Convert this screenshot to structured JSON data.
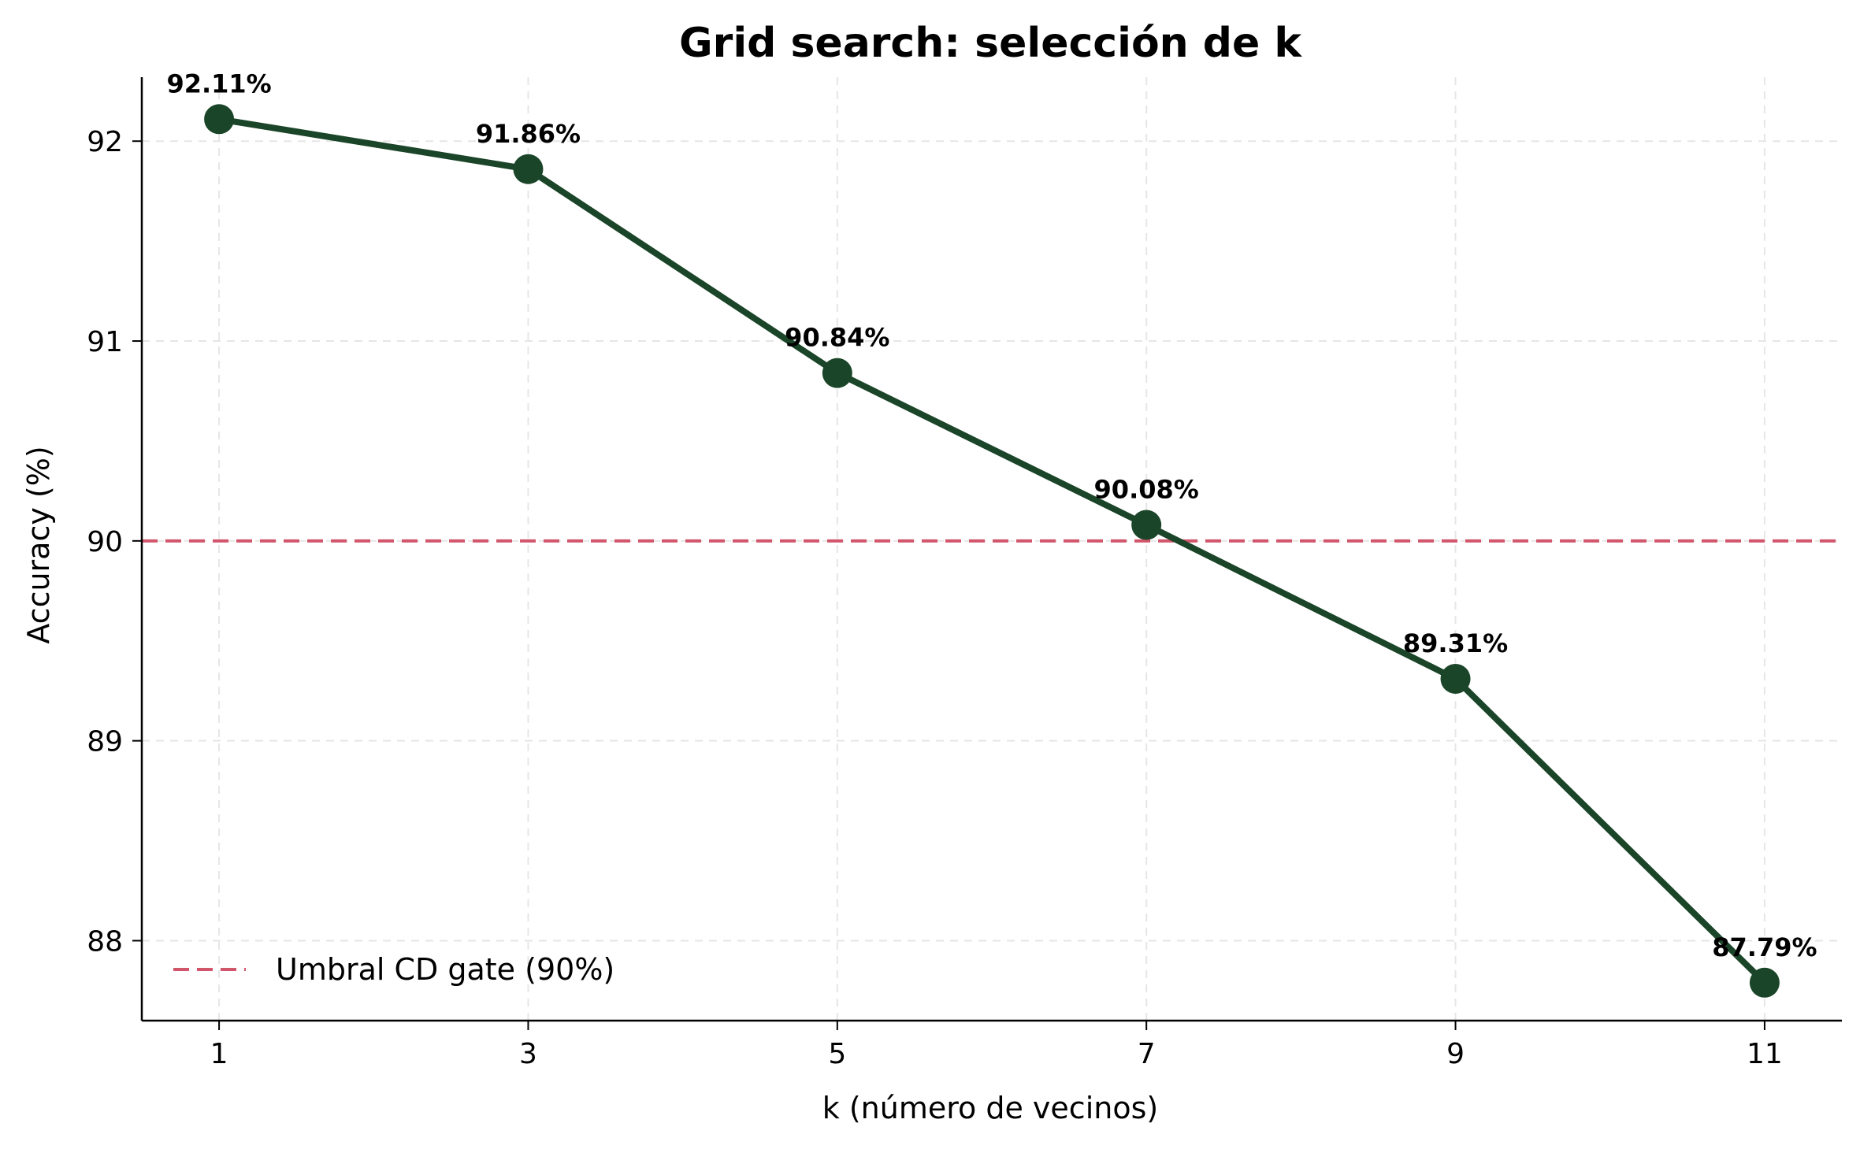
{
  "chart_data": {
    "type": "line",
    "title": "Grid search: selección de k",
    "xlabel": "k (número de vecinos)",
    "ylabel": "Accuracy (%)",
    "x": [
      1,
      3,
      5,
      7,
      9,
      11
    ],
    "xticks": [
      "1",
      "3",
      "5",
      "7",
      "9",
      "11"
    ],
    "yticks": [
      "88",
      "89",
      "90",
      "91",
      "92"
    ],
    "xlim": [
      0.5,
      11.5
    ],
    "ylim": [
      87.6,
      92.32
    ],
    "grid": true,
    "legend_position": "lower-left",
    "series": [
      {
        "values": [
          92.11,
          91.86,
          90.84,
          90.08,
          89.31,
          87.79
        ],
        "labels": [
          "92.11%",
          "91.86%",
          "90.84%",
          "90.08%",
          "89.31%",
          "87.79%"
        ],
        "color": "#1b4528"
      }
    ],
    "reference_line": {
      "y": 90,
      "name": "Umbral CD gate (90%)",
      "color": "#d1566b",
      "style": "dashed"
    }
  }
}
